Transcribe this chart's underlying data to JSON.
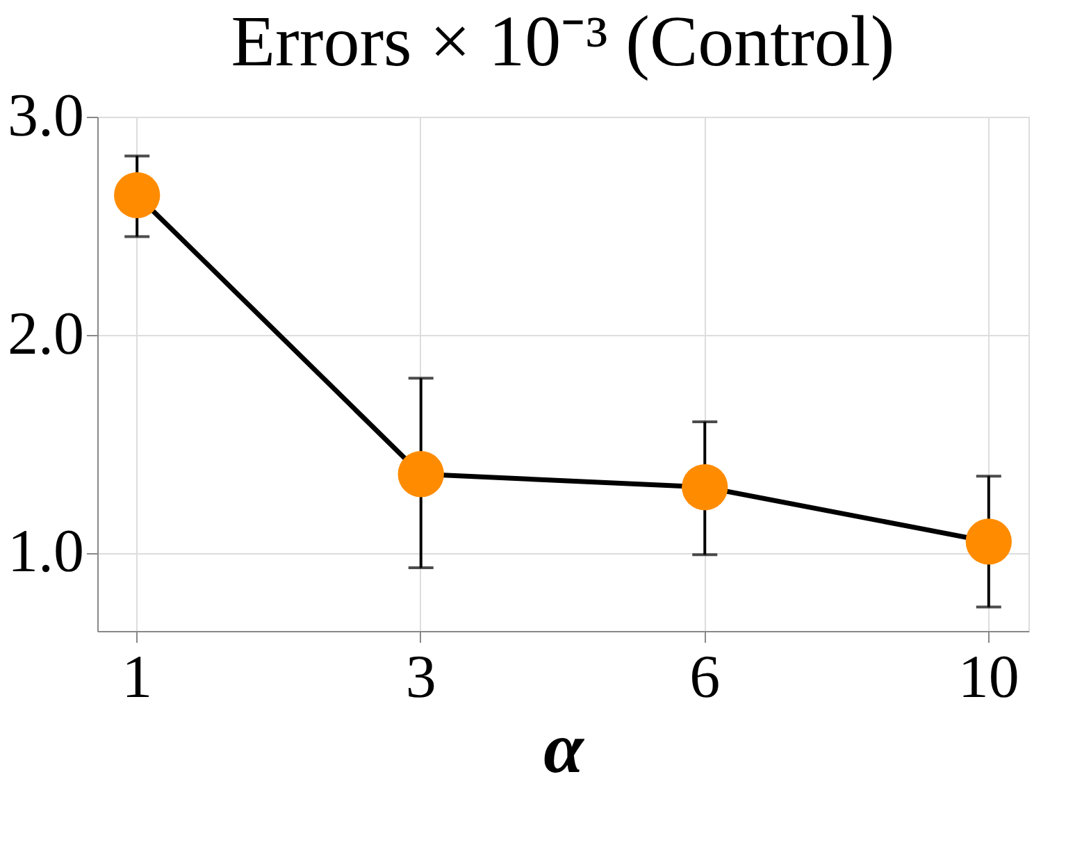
{
  "chart_data": {
    "type": "line",
    "title": "Errors × 10⁻³ (Control)",
    "xlabel": "α",
    "categories": [
      "1",
      "3",
      "6",
      "10"
    ],
    "series": [
      {
        "color": "#000000",
        "colors": [
          "#ff8c00",
          "#ff8c00",
          "#ff8c00",
          "#ff8c00"
        ],
        "values": [
          2.64,
          1.36,
          1.3,
          1.05
        ],
        "errors": [
          [
            2.45,
            2.82
          ],
          [
            0.93,
            1.8
          ],
          [
            0.99,
            1.6
          ],
          [
            0.75,
            1.35
          ]
        ]
      }
    ],
    "ylim": [
      0.64,
      3.0
    ],
    "yticks": [
      {
        "value": 1,
        "label": "1.0"
      },
      {
        "value": 2,
        "label": "2.0"
      },
      {
        "value": 3,
        "label": "3.0"
      }
    ],
    "grid": true,
    "marker": "circle",
    "line_style": "solid"
  }
}
